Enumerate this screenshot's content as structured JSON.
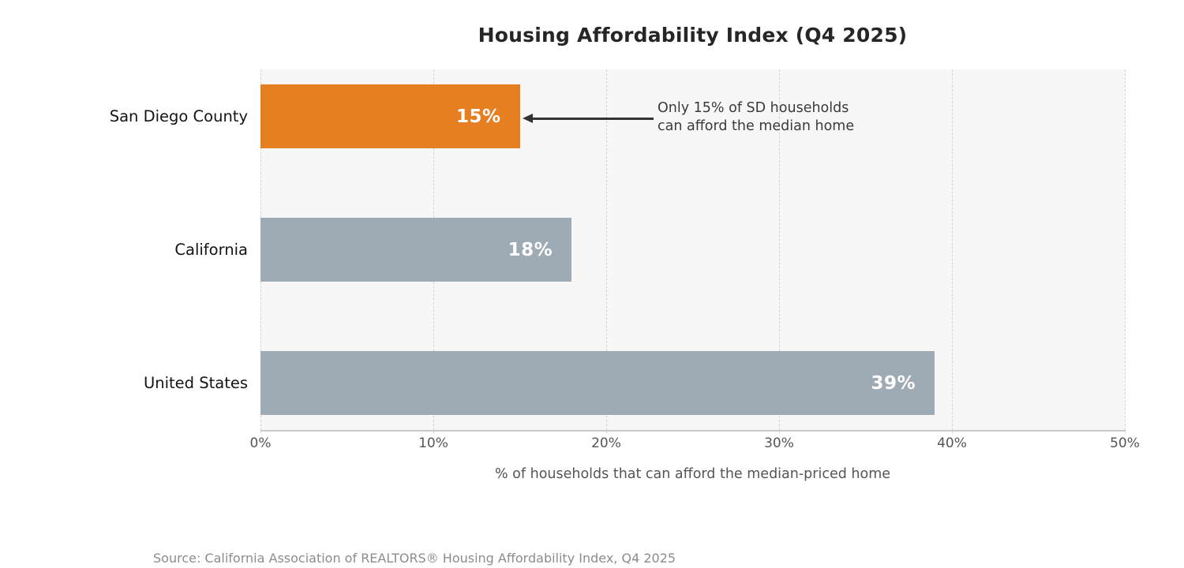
{
  "title": "Housing Affordability Index (Q4 2025)",
  "chart_data": {
    "type": "bar",
    "orientation": "horizontal",
    "categories": [
      "San Diego County",
      "California",
      "United States"
    ],
    "values": [
      15,
      18,
      39
    ],
    "value_labels": [
      "15%",
      "18%",
      "39%"
    ],
    "bar_colors": [
      "#e67e22",
      "#9fabb4",
      "#9fabb4"
    ],
    "highlight_color": "#e67e22",
    "base_color": "#9fabb4",
    "title": "Housing Affordability Index (Q4 2025)",
    "xlabel": "% of households that can afford the median-priced home",
    "ylabel": "",
    "xlim": [
      0,
      50
    ],
    "x_ticks": [
      "0%",
      "10%",
      "20%",
      "30%",
      "40%",
      "50%"
    ],
    "x_tick_values": [
      0,
      10,
      20,
      30,
      40,
      50
    ],
    "grid": "vertical dashed gridlines on light-gray plot background",
    "legend": "none",
    "annotation": {
      "line1": "Only 15% of SD households",
      "line2": "can afford the median home",
      "target_category": "San Diego County",
      "target_value": 15,
      "arrow": "horizontal arrow pointing left to end of San Diego County bar"
    }
  },
  "source": "Source: California Association of REALTORS® Housing Affordability Index, Q4 2025",
  "colors": {
    "plot_background": "#f7f7f7",
    "figure_background": "#ffffff",
    "gridline": "#d2d2d2",
    "axis_line": "#c9c9c9",
    "title_text": "#262626",
    "category_text": "#141414",
    "tick_text": "#565656",
    "annotation_text": "#3a3a3a",
    "source_text": "#8c8c8c",
    "bar_value_text": "#ffffff"
  }
}
